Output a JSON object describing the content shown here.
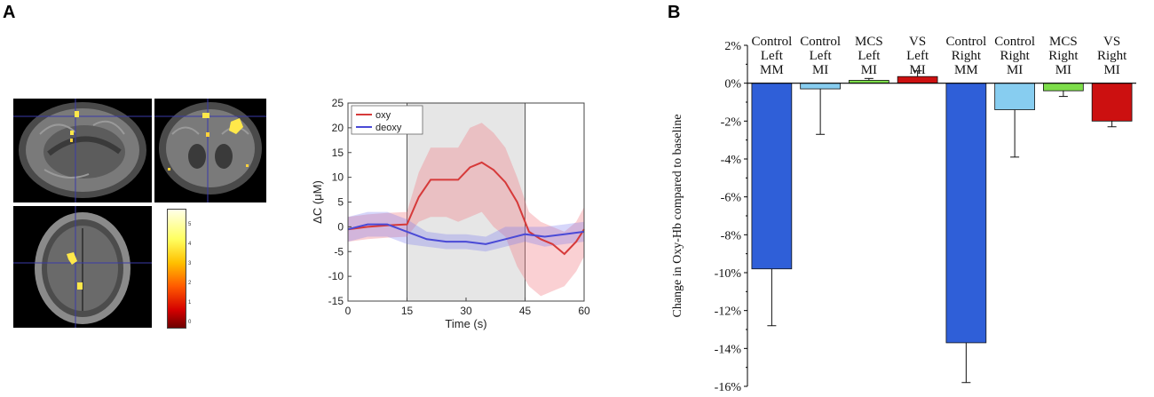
{
  "panels": {
    "a_label": "A",
    "b_label": "B"
  },
  "colorbar": {
    "ticks": [
      "5",
      "4",
      "3",
      "2",
      "1",
      "0"
    ]
  },
  "chart_data": [
    {
      "type": "line",
      "title": "",
      "xlabel": "Time (s)",
      "ylabel": "ΔC (μM)",
      "xlim": [
        0,
        60
      ],
      "ylim": [
        -15,
        25
      ],
      "xticks": [
        0,
        15,
        30,
        45,
        60
      ],
      "yticks": [
        25,
        20,
        15,
        10,
        5,
        0,
        -5,
        -10,
        -15
      ],
      "shaded_interval": [
        15,
        45
      ],
      "legend": [
        "oxy",
        "deoxy"
      ],
      "series": [
        {
          "name": "oxy",
          "color": "#d63a3a",
          "x": [
            0,
            5,
            10,
            15,
            18,
            21,
            25,
            28,
            31,
            34,
            37,
            40,
            43,
            46,
            49,
            52,
            55,
            58,
            60
          ],
          "y": [
            -0.5,
            0,
            0.3,
            0.5,
            6,
            9.5,
            9.5,
            9.5,
            12,
            13,
            11.5,
            9,
            5,
            -1,
            -2.5,
            -3.5,
            -5.5,
            -3,
            -0.5
          ],
          "lower": [
            -3,
            -2.5,
            -2.2,
            -2,
            1,
            2,
            2,
            1,
            2,
            3,
            0,
            -2,
            -8,
            -12,
            -14,
            -13,
            -12,
            -9,
            -6
          ],
          "upper": [
            2,
            2.5,
            2.8,
            3,
            11,
            16,
            16,
            16,
            20,
            21,
            19,
            16,
            10,
            3,
            1,
            0,
            -1,
            1,
            4
          ]
        },
        {
          "name": "deoxy",
          "color": "#4a4ad6",
          "x": [
            0,
            5,
            10,
            15,
            20,
            25,
            30,
            35,
            40,
            45,
            50,
            55,
            60
          ],
          "y": [
            -0.5,
            0.5,
            0.5,
            -1,
            -2.5,
            -3,
            -3,
            -3.5,
            -2.5,
            -1.5,
            -2,
            -1.5,
            -1
          ],
          "lower": [
            -3,
            -2,
            -2,
            -3.5,
            -4,
            -4.5,
            -4.5,
            -5,
            -4,
            -3,
            -4,
            -3.5,
            -3
          ],
          "upper": [
            2,
            3,
            3,
            1.5,
            -1,
            -1.5,
            -1.5,
            -2,
            0,
            0,
            0,
            0.5,
            1
          ]
        }
      ]
    },
    {
      "type": "bar",
      "title": "",
      "xlabel": "",
      "ylabel": "Change in Oxy-Hb compared to baseline",
      "ylim": [
        -16,
        2
      ],
      "yticks": [
        2,
        0,
        -2,
        -4,
        -6,
        -8,
        -10,
        -12,
        -14,
        -16
      ],
      "tick_suffix": "%",
      "categories": [
        [
          "Control",
          "Left",
          "MM"
        ],
        [
          "Control",
          "Left",
          "MI"
        ],
        [
          "MCS",
          "Left",
          "MI"
        ],
        [
          "VS",
          "Left",
          "MI"
        ],
        [
          "Control",
          "Right",
          "MM"
        ],
        [
          "Control",
          "Right",
          "MI"
        ],
        [
          "MCS",
          "Right",
          "MI"
        ],
        [
          "VS",
          "Right",
          "MI"
        ]
      ],
      "values": [
        -9.8,
        -0.3,
        0.15,
        0.35,
        -13.7,
        -1.4,
        -0.4,
        -2.0
      ],
      "errors": [
        3.0,
        2.4,
        0.1,
        0.3,
        2.1,
        2.5,
        0.3,
        0.3
      ],
      "colors": [
        "#2f5fd8",
        "#87cdf0",
        "#7ddd4a",
        "#cc1010",
        "#2f5fd8",
        "#87cdf0",
        "#7ddd4a",
        "#cc1010"
      ]
    }
  ]
}
